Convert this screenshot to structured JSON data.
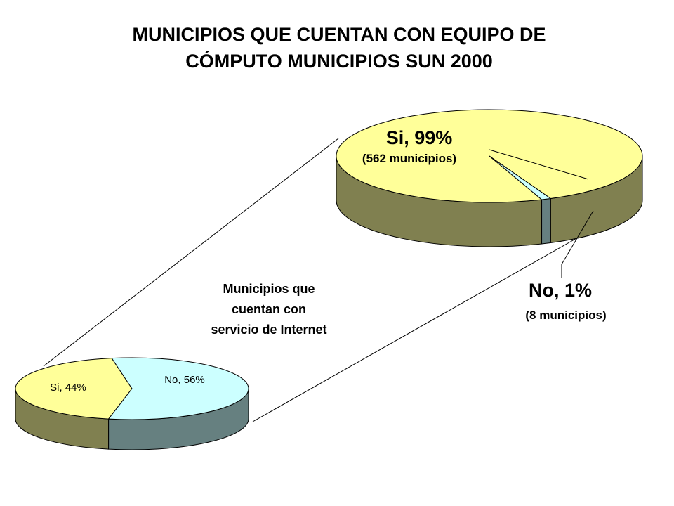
{
  "title": {
    "line1": "MUNICIPIOS QUE CUENTAN CON EQUIPO DE",
    "line2": "CÓMPUTO MUNICIPIOS SUN 2000"
  },
  "center_label": {
    "line1": "Municipios que",
    "line2": "cuentan con",
    "line3": "servicio de Internet"
  },
  "colors": {
    "yes_top": "#FFFF99",
    "yes_side": "#808050",
    "no_top": "#CCFFFF",
    "no_side": "#668080",
    "edge": "#000000"
  },
  "chart_data": [
    {
      "type": "pie",
      "style": "3d",
      "slices": [
        {
          "label": "Si, 99%",
          "sublabel": "(562 municipios)",
          "percent": 99,
          "count": 562,
          "color": "#FFFF99"
        },
        {
          "label": "No, 1%",
          "sublabel": "(8 municipios)",
          "percent": 1,
          "count": 8,
          "color": "#CCFFFF"
        }
      ]
    },
    {
      "type": "pie",
      "style": "3d",
      "slices": [
        {
          "label": "Si, 44%",
          "percent": 44,
          "color": "#FFFF99"
        },
        {
          "label": "No, 56%",
          "percent": 56,
          "color": "#CCFFFF"
        }
      ]
    }
  ]
}
